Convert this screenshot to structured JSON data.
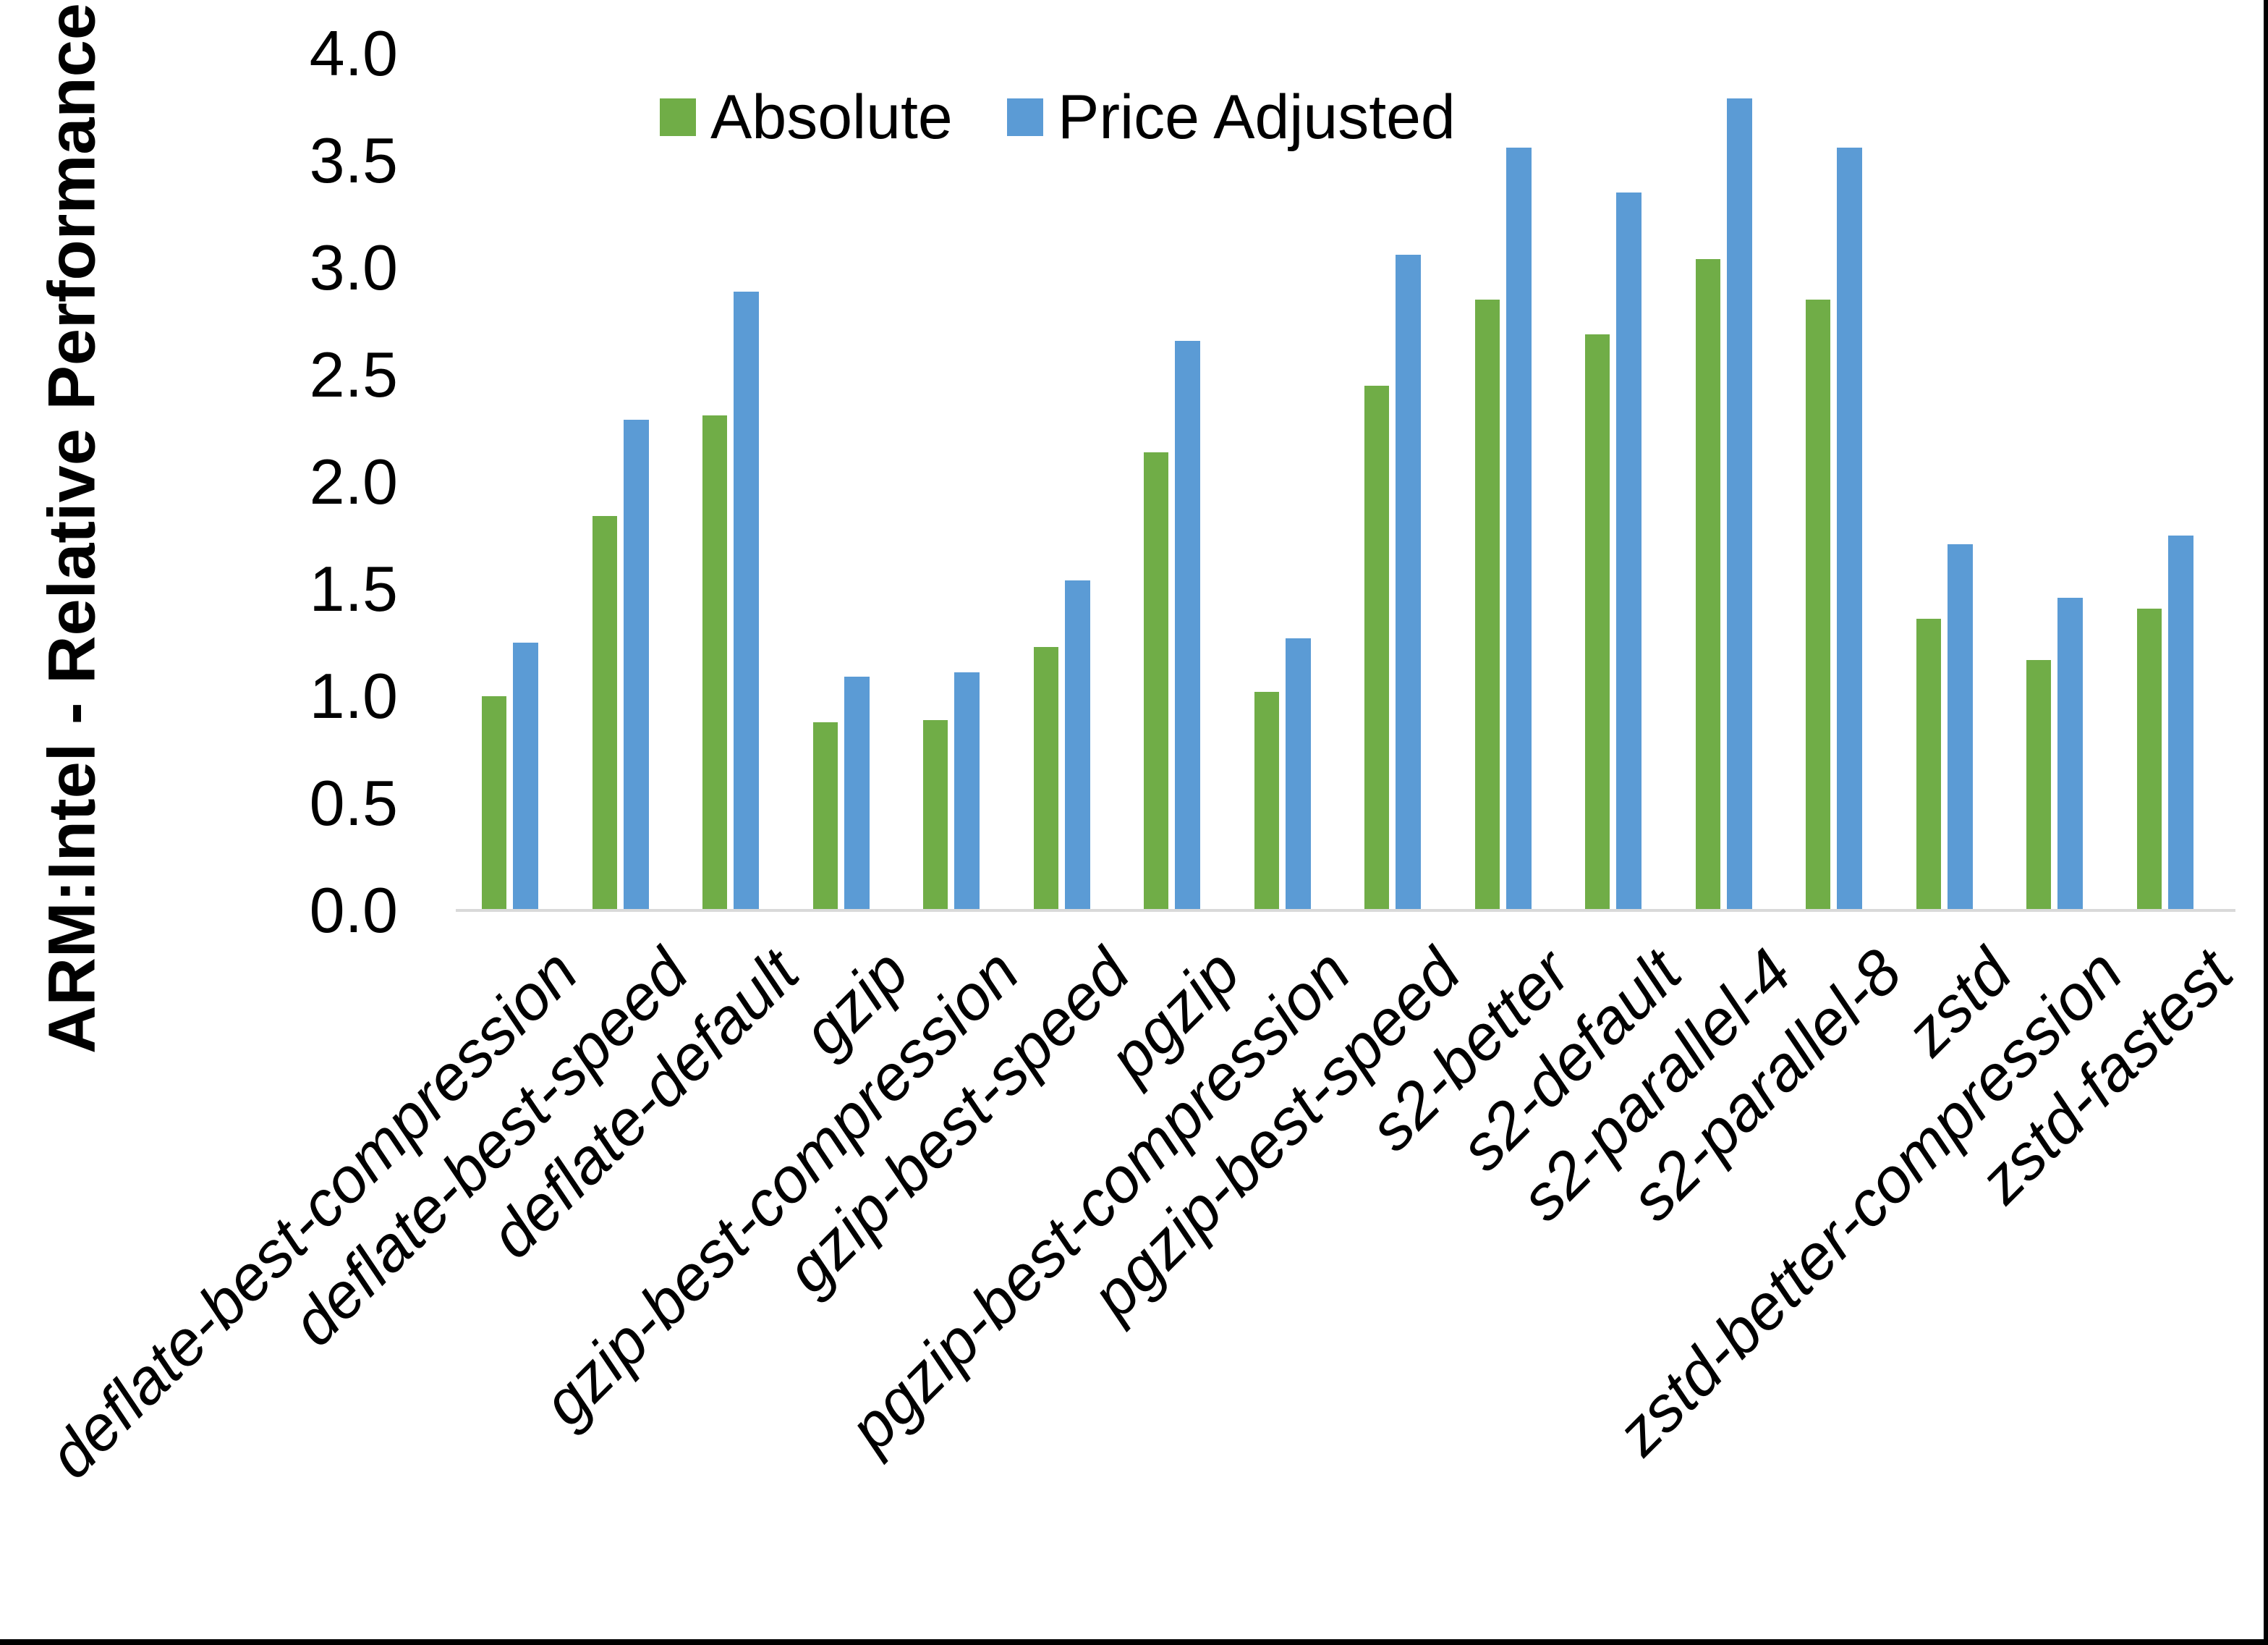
{
  "chart_data": {
    "type": "bar",
    "title": "",
    "xlabel": "",
    "ylabel": "ARM:Intel - Relative Performance",
    "ylim": [
      0.0,
      4.0
    ],
    "ytick_step": 0.5,
    "ytick_labels": [
      "0.0",
      "0.5",
      "1.0",
      "1.5",
      "2.0",
      "2.5",
      "3.0",
      "3.5",
      "4.0"
    ],
    "grid": false,
    "legend_position": "top-center",
    "categories": [
      "deflate-best-compression",
      "deflate-best-speed",
      "deflate-default",
      "gzip",
      "gzip-best-compression",
      "gzip-best-speed",
      "pgzip",
      "pgzip-best-compression",
      "pgzip-best-speed",
      "s2-better",
      "s2-default",
      "s2-parallel-4",
      "s2-parallel-8",
      "zstd",
      "zstd-better-compression",
      "zstd-fastest"
    ],
    "series": [
      {
        "name": "Absolute",
        "color": "#70AD47",
        "values": [
          1.0,
          1.84,
          2.31,
          0.88,
          0.89,
          1.23,
          2.14,
          1.02,
          2.45,
          2.85,
          2.69,
          3.04,
          2.85,
          1.36,
          1.17,
          1.41
        ]
      },
      {
        "name": "Price Adjusted",
        "color": "#5B9BD5",
        "values": [
          1.25,
          2.29,
          2.89,
          1.09,
          1.11,
          1.54,
          2.66,
          1.27,
          3.06,
          3.56,
          3.35,
          3.79,
          3.56,
          1.71,
          1.46,
          1.75
        ]
      }
    ]
  },
  "colors": {
    "background": "#FFFFFF",
    "axis_line": "#D9D9D9",
    "text": "#000000",
    "frame_border": "#000000"
  }
}
